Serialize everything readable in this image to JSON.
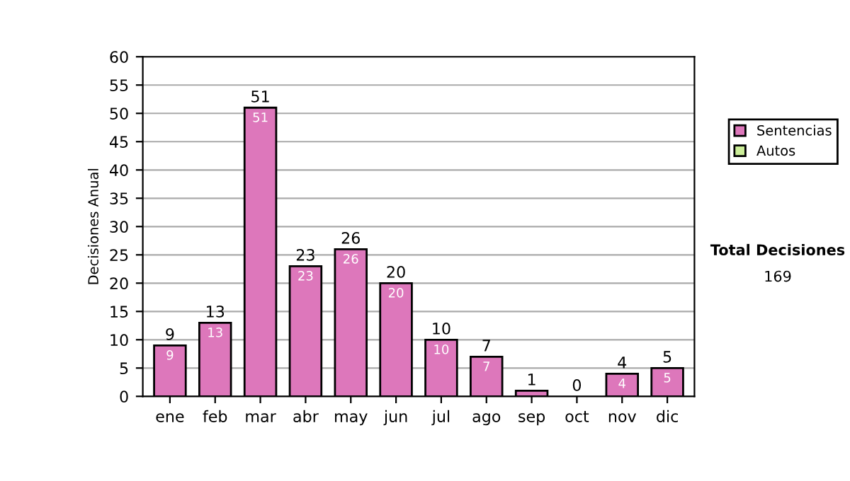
{
  "chart_data": {
    "type": "bar",
    "stacked": true,
    "ylabel": "Decisiones Anual",
    "categories": [
      "ene",
      "feb",
      "mar",
      "abr",
      "may",
      "jun",
      "jul",
      "ago",
      "sep",
      "oct",
      "nov",
      "dic"
    ],
    "series": [
      {
        "name": "Sentencias",
        "color": "#dd77bb",
        "values": [
          9,
          13,
          51,
          23,
          26,
          20,
          10,
          7,
          1,
          0,
          4,
          5
        ],
        "value_labels": [
          "9",
          "13",
          "51",
          "23",
          "26",
          "20",
          "10",
          "7",
          null,
          null,
          "4",
          "5"
        ]
      },
      {
        "name": "Autos",
        "color": "#ccee99",
        "values": [
          0,
          0,
          0,
          0,
          0,
          0,
          0,
          0,
          0,
          0,
          0,
          0
        ]
      }
    ],
    "totals": [
      "9",
      "13",
      "51",
      "23",
      "26",
      "20",
      "10",
      "7",
      "1",
      "0",
      "4",
      "5"
    ],
    "ylim": [
      0,
      60
    ],
    "yticks": [
      0,
      5,
      10,
      15,
      20,
      25,
      30,
      35,
      40,
      45,
      50,
      55,
      60
    ],
    "grid": "y",
    "legend": "right",
    "annotations": [
      "Total Decisiones",
      "169"
    ]
  }
}
